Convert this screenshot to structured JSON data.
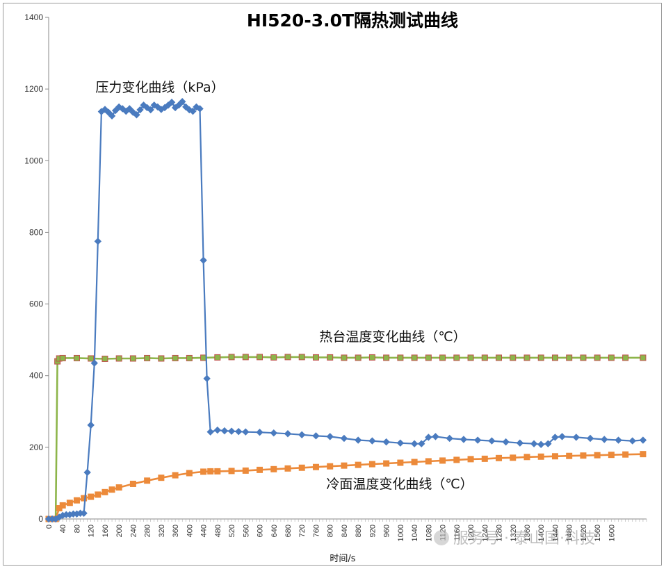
{
  "chart_data": {
    "type": "line",
    "title": "HI520-3.0T隔热测试曲线",
    "xlabel": "时间/s",
    "ylabel": "",
    "ylim": [
      0,
      1400
    ],
    "xlim": [
      0,
      1700
    ],
    "yticks": [
      0,
      200,
      400,
      600,
      800,
      1000,
      1200,
      1400
    ],
    "xticks": [
      0,
      40,
      80,
      120,
      160,
      200,
      240,
      280,
      320,
      360,
      400,
      440,
      480,
      520,
      560,
      600,
      640,
      680,
      720,
      760,
      800,
      840,
      880,
      920,
      960,
      1000,
      1040,
      1080,
      1120,
      1160,
      1200,
      1240,
      1280,
      1320,
      1360,
      1400,
      1440,
      1480,
      1520,
      1560,
      1600
    ],
    "grid": false,
    "series": [
      {
        "name": "压力变化曲线（kPa）",
        "color": "#4a7bbf",
        "marker": "diamond",
        "x": [
          0,
          10,
          20,
          30,
          40,
          50,
          60,
          70,
          80,
          90,
          100,
          110,
          120,
          130,
          140,
          150,
          160,
          170,
          180,
          190,
          200,
          210,
          220,
          230,
          240,
          250,
          260,
          270,
          280,
          290,
          300,
          310,
          320,
          330,
          340,
          350,
          360,
          370,
          380,
          390,
          400,
          410,
          420,
          430,
          440,
          450,
          460,
          480,
          500,
          520,
          540,
          560,
          600,
          640,
          680,
          720,
          760,
          800,
          840,
          880,
          920,
          960,
          1000,
          1040,
          1060,
          1080,
          1100,
          1140,
          1180,
          1220,
          1260,
          1300,
          1340,
          1380,
          1400,
          1420,
          1440,
          1460,
          1500,
          1540,
          1580,
          1620,
          1660,
          1690
        ],
        "y": [
          0,
          0,
          0,
          5,
          10,
          12,
          12,
          14,
          14,
          16,
          16,
          130,
          262,
          435,
          775,
          1137,
          1143,
          1135,
          1125,
          1140,
          1150,
          1145,
          1138,
          1145,
          1135,
          1128,
          1142,
          1155,
          1148,
          1142,
          1155,
          1150,
          1143,
          1148,
          1155,
          1163,
          1148,
          1155,
          1165,
          1150,
          1142,
          1138,
          1150,
          1145,
          722,
          392,
          243,
          248,
          246,
          245,
          244,
          243,
          242,
          240,
          238,
          235,
          232,
          230,
          225,
          220,
          218,
          215,
          212,
          210,
          210,
          228,
          230,
          225,
          222,
          220,
          218,
          215,
          212,
          210,
          208,
          210,
          228,
          230,
          228,
          225,
          222,
          220,
          218,
          220
        ]
      },
      {
        "name": "热台温度变化曲线（℃）",
        "color": "#8db54a",
        "edge_color": "#c0504d",
        "marker": "square",
        "x": [
          0,
          10,
          20,
          25,
          30,
          40,
          80,
          120,
          160,
          200,
          240,
          280,
          320,
          360,
          400,
          440,
          480,
          520,
          560,
          600,
          640,
          680,
          720,
          760,
          800,
          840,
          880,
          920,
          960,
          1000,
          1040,
          1080,
          1120,
          1160,
          1200,
          1240,
          1280,
          1320,
          1360,
          1400,
          1440,
          1480,
          1520,
          1560,
          1600,
          1640,
          1690
        ],
        "y": [
          0,
          0,
          0,
          440,
          448,
          449,
          449,
          448,
          447,
          448,
          448,
          449,
          448,
          449,
          449,
          450,
          451,
          452,
          452,
          452,
          451,
          452,
          452,
          451,
          451,
          450,
          450,
          451,
          450,
          450,
          450,
          450,
          450,
          450,
          450,
          450,
          450,
          450,
          450,
          450,
          450,
          450,
          450,
          450,
          450,
          450,
          450
        ]
      },
      {
        "name": "冷面温度变化曲线（℃）",
        "color": "#ec8a3a",
        "marker": "square",
        "x": [
          0,
          10,
          20,
          30,
          40,
          60,
          80,
          100,
          120,
          140,
          160,
          180,
          200,
          240,
          280,
          320,
          360,
          400,
          440,
          460,
          480,
          520,
          560,
          600,
          640,
          680,
          720,
          760,
          800,
          840,
          880,
          920,
          960,
          1000,
          1040,
          1080,
          1120,
          1160,
          1200,
          1240,
          1280,
          1320,
          1360,
          1400,
          1440,
          1480,
          1520,
          1560,
          1600,
          1640,
          1690
        ],
        "y": [
          0,
          0,
          0,
          30,
          38,
          45,
          52,
          58,
          62,
          68,
          75,
          82,
          88,
          98,
          107,
          115,
          122,
          128,
          132,
          133,
          133,
          134,
          135,
          137,
          139,
          141,
          143,
          145,
          147,
          149,
          151,
          153,
          155,
          157,
          159,
          161,
          163,
          165,
          167,
          168,
          170,
          171,
          173,
          174,
          175,
          176,
          177,
          178,
          179,
          180,
          181
        ]
      }
    ],
    "annotations": {
      "pressure": "压力变化曲线（kPa）",
      "hot": "热台温度变化曲线（℃）",
      "cold": "冷面温度变化曲线（℃）"
    }
  },
  "watermark": "服务号 · 泰山国·科技"
}
